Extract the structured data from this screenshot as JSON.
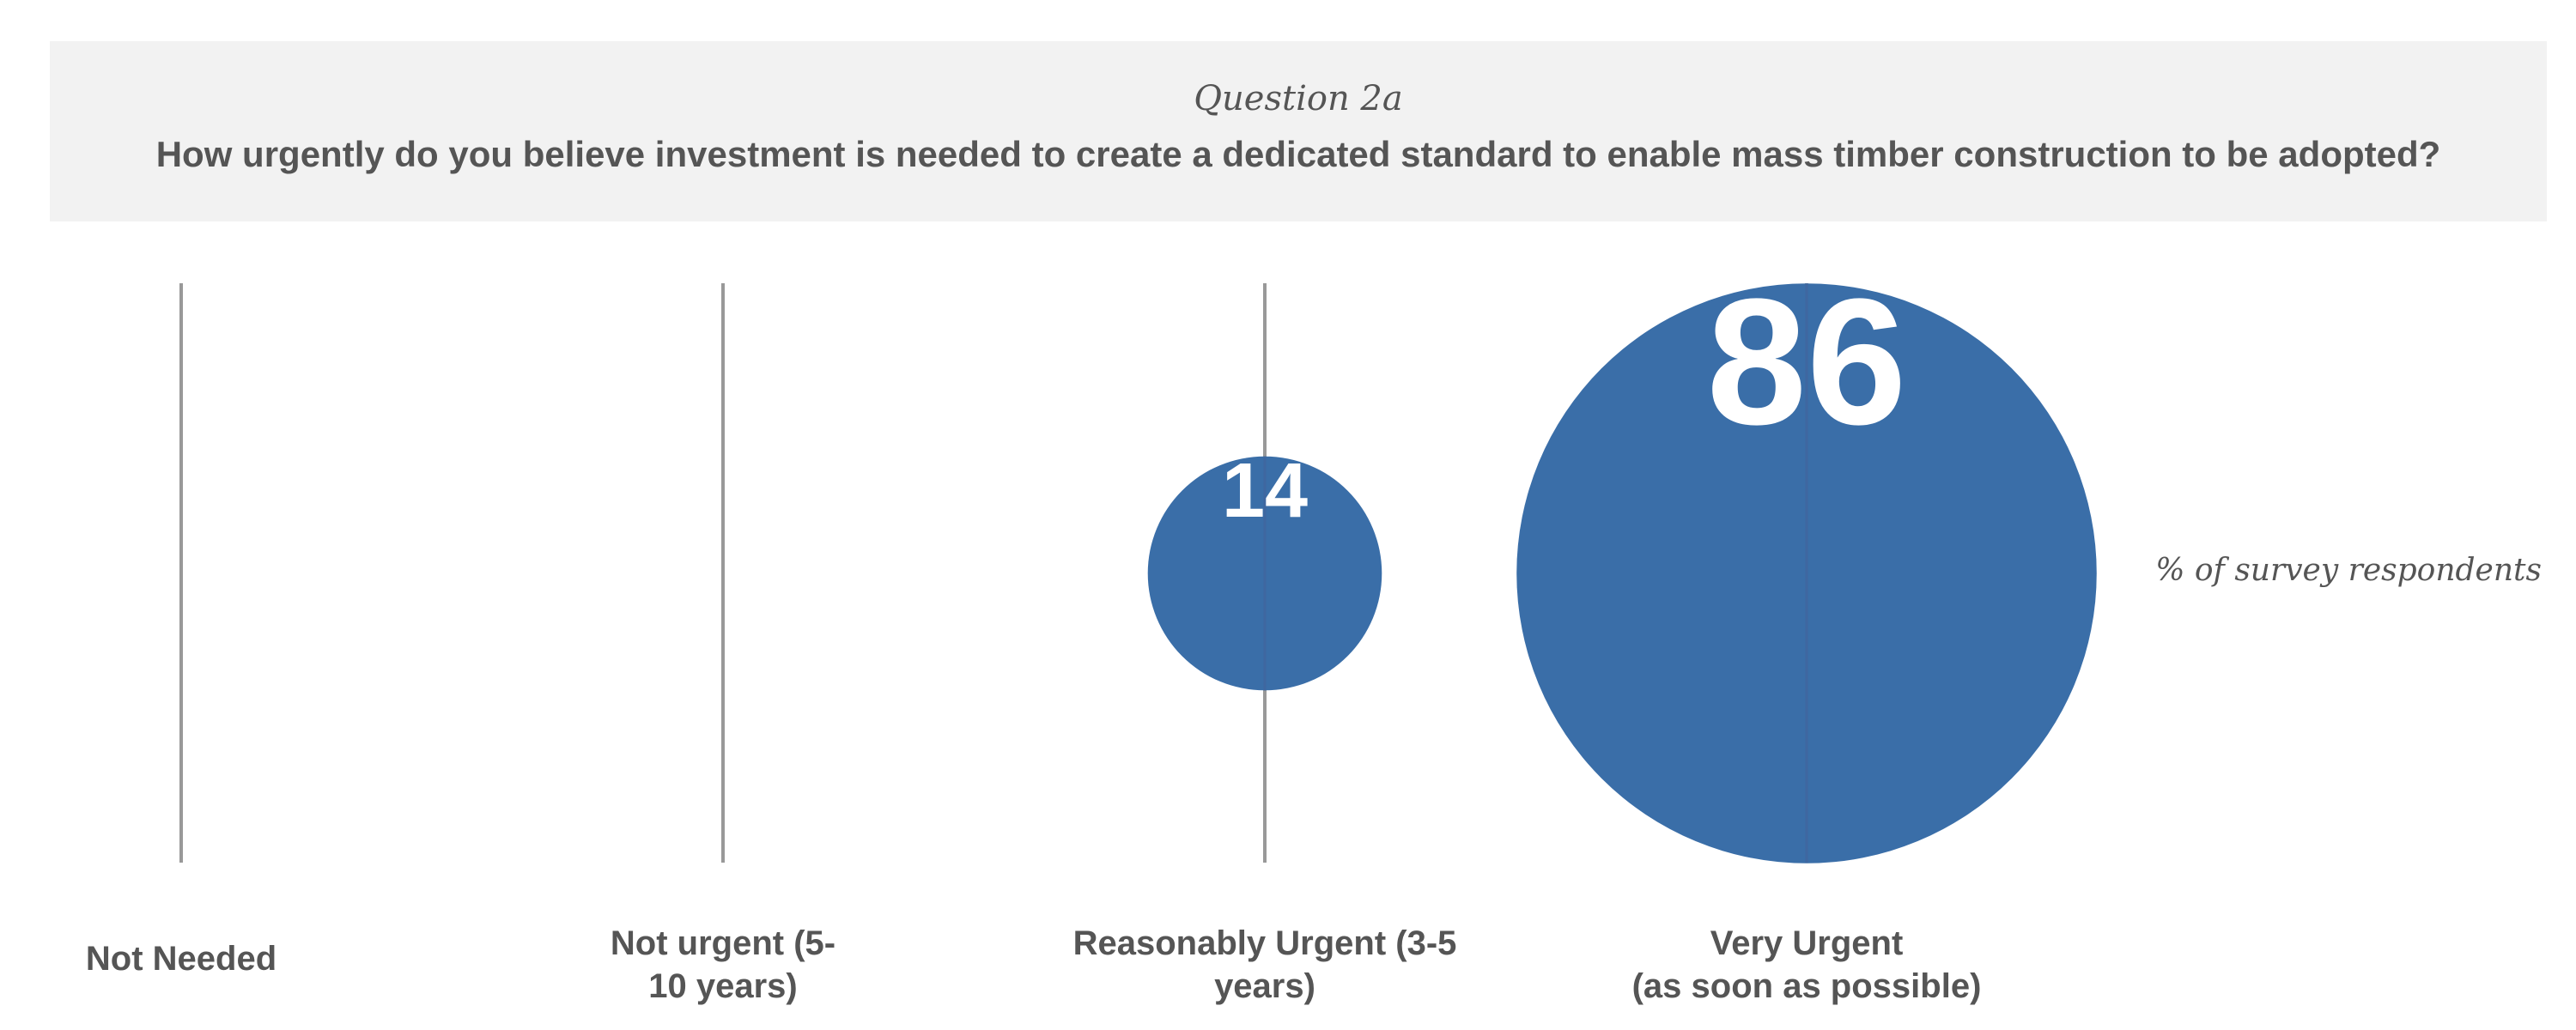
{
  "header": {
    "question_number": "Question 2a",
    "question_text": "How urgently do you believe investment is needed to create a dedicated standard to enable mass timber construction to be adopted?"
  },
  "unit_label": "% of survey respondents",
  "chart_data": {
    "type": "bubble",
    "categories": [
      "Not Needed",
      "Not urgent (5-\n10 years)",
      "Reasonably Urgent (3-5\nyears)",
      "Very Urgent\n(as soon as possible)"
    ],
    "values": [
      0,
      0,
      14,
      86
    ],
    "value_labels": [
      "",
      "",
      "14",
      "86"
    ],
    "color": "#3a6ea8"
  }
}
